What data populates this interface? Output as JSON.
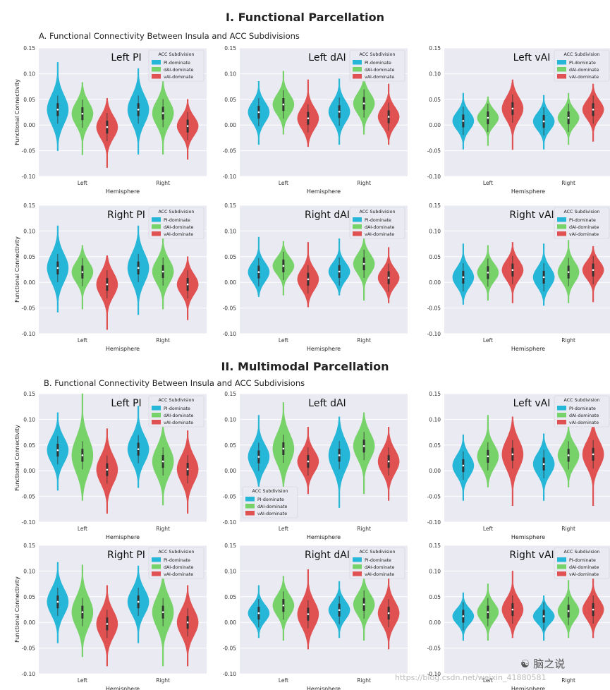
{
  "sections": [
    {
      "title": "I. Functional Parcellation",
      "subtitle": "A. Functional Connectivity Between Insula and ACC Subdivisions",
      "panels": [
        {
          "title": "Left PI",
          "legend_pos": "top-right",
          "values": [
            [
              0.03,
              0.022,
              -0.004
            ],
            [
              0.03,
              0.023,
              -0.002
            ]
          ],
          "ranges": [
            [
              -0.05,
              0.122
            ],
            [
              -0.058,
              0.083
            ],
            [
              -0.083,
              0.052
            ],
            [
              -0.057,
              0.11
            ],
            [
              -0.057,
              0.092
            ],
            [
              -0.067,
              0.05
            ]
          ]
        },
        {
          "title": "Left dAI",
          "legend_pos": "top-right",
          "values": [
            [
              0.025,
              0.04,
              0.013
            ],
            [
              0.026,
              0.042,
              0.016
            ]
          ],
          "ranges": [
            [
              -0.038,
              0.085
            ],
            [
              -0.018,
              0.105
            ],
            [
              -0.042,
              0.088
            ],
            [
              -0.038,
              0.09
            ],
            [
              -0.018,
              0.106
            ],
            [
              -0.038,
              0.08
            ]
          ]
        },
        {
          "title": "Left vAI",
          "legend_pos": "top-right",
          "values": [
            [
              0.008,
              0.014,
              0.032
            ],
            [
              0.007,
              0.014,
              0.03
            ]
          ],
          "ranges": [
            [
              -0.047,
              0.062
            ],
            [
              -0.04,
              0.055
            ],
            [
              -0.048,
              0.088
            ],
            [
              -0.047,
              0.058
            ],
            [
              -0.038,
              0.062
            ],
            [
              -0.032,
              0.08
            ]
          ]
        },
        {
          "title": "Right PI",
          "legend_pos": "top-right",
          "values": [
            [
              0.028,
              0.02,
              -0.004
            ],
            [
              0.028,
              0.021,
              -0.004
            ]
          ],
          "ranges": [
            [
              -0.058,
              0.11
            ],
            [
              -0.052,
              0.072
            ],
            [
              -0.092,
              0.052
            ],
            [
              -0.063,
              0.11
            ],
            [
              -0.052,
              0.09
            ],
            [
              -0.073,
              0.05
            ]
          ]
        },
        {
          "title": "Right dAI",
          "legend_pos": "top-right",
          "values": [
            [
              0.02,
              0.032,
              0.006
            ],
            [
              0.021,
              0.036,
              0.009
            ]
          ],
          "ranges": [
            [
              -0.028,
              0.088
            ],
            [
              -0.025,
              0.08
            ],
            [
              -0.048,
              0.078
            ],
            [
              -0.025,
              0.085
            ],
            [
              -0.035,
              0.085
            ],
            [
              -0.04,
              0.068
            ]
          ]
        },
        {
          "title": "Right vAI",
          "legend_pos": "top-right",
          "values": [
            [
              0.01,
              0.019,
              0.024
            ],
            [
              0.01,
              0.02,
              0.024
            ]
          ],
          "ranges": [
            [
              -0.043,
              0.075
            ],
            [
              -0.035,
              0.072
            ],
            [
              -0.04,
              0.078
            ],
            [
              -0.045,
              0.075
            ],
            [
              -0.04,
              0.082
            ],
            [
              -0.038,
              0.07
            ]
          ]
        }
      ]
    },
    {
      "title": "II. Multimodal Parcellation",
      "subtitle": "B. Functional Connectivity Between Insula and ACC Subdivisions",
      "panels": [
        {
          "title": "Left PI",
          "legend_pos": "top-right",
          "values": [
            [
              0.04,
              0.03,
              0.002
            ],
            [
              0.042,
              0.018,
              0.003
            ]
          ],
          "ranges": [
            [
              -0.038,
              0.113
            ],
            [
              -0.058,
              0.15
            ],
            [
              -0.083,
              0.082
            ],
            [
              -0.033,
              0.126
            ],
            [
              -0.067,
              0.105
            ],
            [
              -0.083,
              0.078
            ]
          ]
        },
        {
          "title": "Left dAI",
          "legend_pos": "bottom-left",
          "values": [
            [
              0.027,
              0.043,
              0.018
            ],
            [
              0.03,
              0.048,
              0.018
            ]
          ],
          "ranges": [
            [
              -0.038,
              0.108
            ],
            [
              -0.048,
              0.133
            ],
            [
              -0.045,
              0.085
            ],
            [
              -0.072,
              0.105
            ],
            [
              -0.045,
              0.113
            ],
            [
              -0.058,
              0.085
            ]
          ]
        },
        {
          "title": "Left vAI",
          "legend_pos": "top-right",
          "values": [
            [
              0.01,
              0.028,
              0.032
            ],
            [
              0.013,
              0.03,
              0.032
            ]
          ],
          "ranges": [
            [
              -0.058,
              0.07
            ],
            [
              -0.032,
              0.108
            ],
            [
              -0.068,
              0.105
            ],
            [
              -0.058,
              0.072
            ],
            [
              -0.032,
              0.1
            ],
            [
              -0.068,
              0.09
            ]
          ]
        },
        {
          "title": "Right PI",
          "legend_pos": "top-right",
          "values": [
            [
              0.04,
              0.02,
              -0.003
            ],
            [
              0.04,
              0.02,
              0.0
            ]
          ],
          "ranges": [
            [
              -0.04,
              0.117
            ],
            [
              -0.067,
              0.112
            ],
            [
              -0.085,
              0.072
            ],
            [
              -0.04,
              0.11
            ],
            [
              -0.085,
              0.095
            ],
            [
              -0.085,
              0.072
            ]
          ]
        },
        {
          "title": "Right dAI",
          "legend_pos": "top-right",
          "values": [
            [
              0.018,
              0.033,
              0.016
            ],
            [
              0.024,
              0.035,
              0.018
            ]
          ],
          "ranges": [
            [
              -0.03,
              0.072
            ],
            [
              -0.035,
              0.09
            ],
            [
              -0.052,
              0.103
            ],
            [
              -0.03,
              0.08
            ],
            [
              -0.035,
              0.093
            ],
            [
              -0.052,
              0.09
            ]
          ]
        },
        {
          "title": "Right vAI",
          "legend_pos": "top-right",
          "values": [
            [
              0.012,
              0.02,
              0.025
            ],
            [
              0.012,
              0.022,
              0.025
            ]
          ],
          "ranges": [
            [
              -0.035,
              0.058
            ],
            [
              -0.035,
              0.075
            ],
            [
              -0.03,
              0.1
            ],
            [
              -0.035,
              0.052
            ],
            [
              -0.03,
              0.082
            ],
            [
              -0.03,
              0.09
            ]
          ]
        }
      ]
    }
  ],
  "chart_data": {
    "type": "violin",
    "ylim": [
      -0.1,
      0.15
    ],
    "yticks": [
      "0.15",
      "0.10",
      "0.05",
      "0.00",
      "-0.05",
      "-0.10"
    ],
    "xlabel": "Hemisphere",
    "ylabel": "Functional Connectivity",
    "categories": [
      "Left",
      "Right"
    ],
    "legend_title": "ACC Subdivision",
    "series": [
      {
        "name": "PI-dominate",
        "color": "#26b6d8"
      },
      {
        "name": "dAI-dominate",
        "color": "#78d26a"
      },
      {
        "name": "vAI-dominate",
        "color": "#e05252"
      }
    ]
  },
  "watermark": {
    "logo_text": "脑之说",
    "url_text": "https://blog.csdn.net/weixin_41880581"
  }
}
